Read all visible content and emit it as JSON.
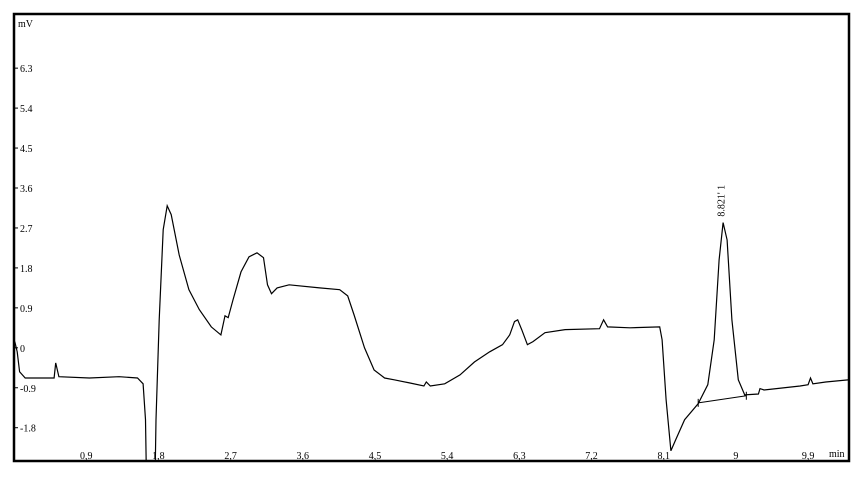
{
  "chart_data": {
    "type": "line",
    "title": "",
    "xlabel": "min",
    "ylabel": "mV",
    "xlim": [
      0,
      10.41
    ],
    "ylim": [
      -2.55,
      7.52
    ],
    "grid": false,
    "x_ticks": [
      0.9,
      1.8,
      2.7,
      3.6,
      4.5,
      5.4,
      6.3,
      7.2,
      8.1,
      9,
      9.9
    ],
    "x_tick_labels": [
      "0,9",
      "1,8",
      "2,7",
      "3,6",
      "4,5",
      "5,4",
      "6,3",
      "7,2",
      "8,1",
      "9",
      "9,9"
    ],
    "y_ticks": [
      6.3,
      5.4,
      4.5,
      3.6,
      2.7,
      1.8,
      0.9,
      0,
      -0.9,
      -1.8
    ],
    "y_tick_labels": [
      "6.3",
      "5.4",
      "4.5",
      "3.6",
      "2.7",
      "1.8",
      "0.9",
      "0",
      "-0.9",
      "-1.8"
    ],
    "line_color": "#000000",
    "series": [
      {
        "x": [
          0.0,
          0.01,
          0.04,
          0.07,
          0.14,
          0.5,
          0.52,
          0.56,
          0.94,
          1.31,
          1.54,
          1.61,
          1.64,
          1.65,
          1.76,
          1.77,
          1.81,
          1.86,
          1.91,
          1.96,
          2.06,
          2.18,
          2.31,
          2.46,
          2.58,
          2.63,
          2.67,
          2.73,
          2.83,
          2.93,
          3.03,
          3.11,
          3.16,
          3.21,
          3.28,
          3.43,
          3.81,
          4.06,
          4.16,
          4.24,
          4.37,
          4.49,
          4.62,
          4.74,
          4.93,
          5.11,
          5.14,
          5.19,
          5.37,
          5.56,
          5.74,
          5.93,
          6.09,
          6.18,
          6.24,
          6.28,
          6.33,
          6.4,
          6.47,
          6.62,
          6.87,
          7.3,
          7.35,
          7.4,
          7.68,
          8.05,
          8.08,
          8.13,
          8.19,
          8.25,
          8.36,
          8.53,
          8.65,
          8.73,
          8.79,
          8.84,
          8.89,
          8.95,
          9.03,
          9.11,
          9.28,
          9.3,
          9.35,
          9.8,
          9.9,
          9.93,
          9.96,
          10.12,
          10.41
        ],
        "y": [
          0.07,
          0.14,
          -0.09,
          -0.54,
          -0.68,
          -0.68,
          -0.34,
          -0.65,
          -0.68,
          -0.65,
          -0.68,
          -0.81,
          -1.62,
          -2.75,
          -2.75,
          -1.62,
          0.63,
          2.66,
          3.2,
          3.0,
          2.09,
          1.31,
          0.86,
          0.47,
          0.29,
          0.72,
          0.68,
          1.08,
          1.71,
          2.05,
          2.14,
          2.03,
          1.42,
          1.22,
          1.35,
          1.42,
          1.35,
          1.31,
          1.17,
          0.74,
          0.0,
          -0.5,
          -0.68,
          -0.72,
          -0.79,
          -0.86,
          -0.77,
          -0.86,
          -0.81,
          -0.61,
          -0.32,
          -0.09,
          0.07,
          0.29,
          0.59,
          0.63,
          0.41,
          0.07,
          0.14,
          0.34,
          0.41,
          0.43,
          0.63,
          0.47,
          0.45,
          0.47,
          0.18,
          -1.17,
          -2.32,
          -2.07,
          -1.62,
          -1.26,
          -0.83,
          0.18,
          1.98,
          2.82,
          2.43,
          0.63,
          -0.72,
          -1.06,
          -1.04,
          -0.92,
          -0.95,
          -0.86,
          -0.83,
          -0.68,
          -0.81,
          -0.77,
          -0.72
        ]
      }
    ],
    "baseline": {
      "x": [
        8.53,
        9.13
      ],
      "y": [
        -1.24,
        -1.08
      ]
    },
    "peaks": [
      {
        "time": 8.82,
        "label": "8.821' 1",
        "height": 2.82
      }
    ]
  }
}
